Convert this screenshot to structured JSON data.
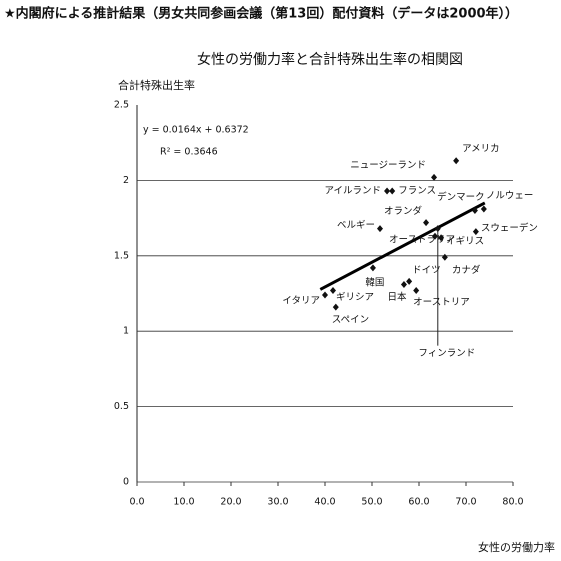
{
  "header": "★内閣府による推計結果（男女共同参画会議（第13回）配付資料（データは2000年））",
  "chart_data": {
    "type": "scatter",
    "title": "女性の労働力率と合計特殊出生率の相関図",
    "y_label": "合計特殊出生率",
    "x_label": "女性の労働力率",
    "annotations": [
      "y = 0.0164x + 0.6372",
      "R² = 0.3646"
    ],
    "color": "#111111",
    "xlim": [
      0,
      80
    ],
    "xticks": [
      {
        "value": 0,
        "label": "0.0"
      },
      {
        "value": 10,
        "label": "10.0"
      },
      {
        "value": 20,
        "label": "20.0"
      },
      {
        "value": 30,
        "label": "30.0"
      },
      {
        "value": 40,
        "label": "40.0"
      },
      {
        "value": 50,
        "label": "50.0"
      },
      {
        "value": 60,
        "label": "60.0"
      },
      {
        "value": 70,
        "label": "70.0"
      },
      {
        "value": 80,
        "label": "80.0"
      }
    ],
    "ylim": [
      0,
      2.5
    ],
    "yticks": [
      0,
      0.5,
      1,
      1.5,
      2,
      2.5
    ],
    "grid": true,
    "trendline": {
      "slope": 0.0164,
      "intercept": 0.6372,
      "x_range": [
        39,
        74
      ]
    },
    "labels": [
      "アメリカ",
      "ニュージーランド",
      "アイルランド",
      "フランス",
      "デンマーク",
      "ノルウェー",
      "スウェーデン",
      "オランダ",
      "ベルギー",
      "オーストラリア",
      "イギリス",
      "カナダ",
      "韓国",
      "ドイツ",
      "日本",
      "オーストリア",
      "イタリア",
      "ギリシア",
      "スペイン",
      "フィンランド"
    ],
    "x": [
      67.9,
      63.2,
      53.2,
      54.3,
      71.9,
      73.8,
      72.1,
      61.5,
      51.7,
      63.4,
      64.7,
      65.5,
      50.2,
      57.9,
      56.8,
      59.4,
      40.0,
      41.7,
      42.3,
      64.0
    ],
    "y": [
      2.13,
      2.02,
      1.93,
      1.93,
      1.8,
      1.81,
      1.66,
      1.72,
      1.68,
      1.63,
      1.62,
      1.49,
      1.42,
      1.33,
      1.31,
      1.27,
      1.24,
      1.27,
      1.16,
      1.68
    ]
  }
}
